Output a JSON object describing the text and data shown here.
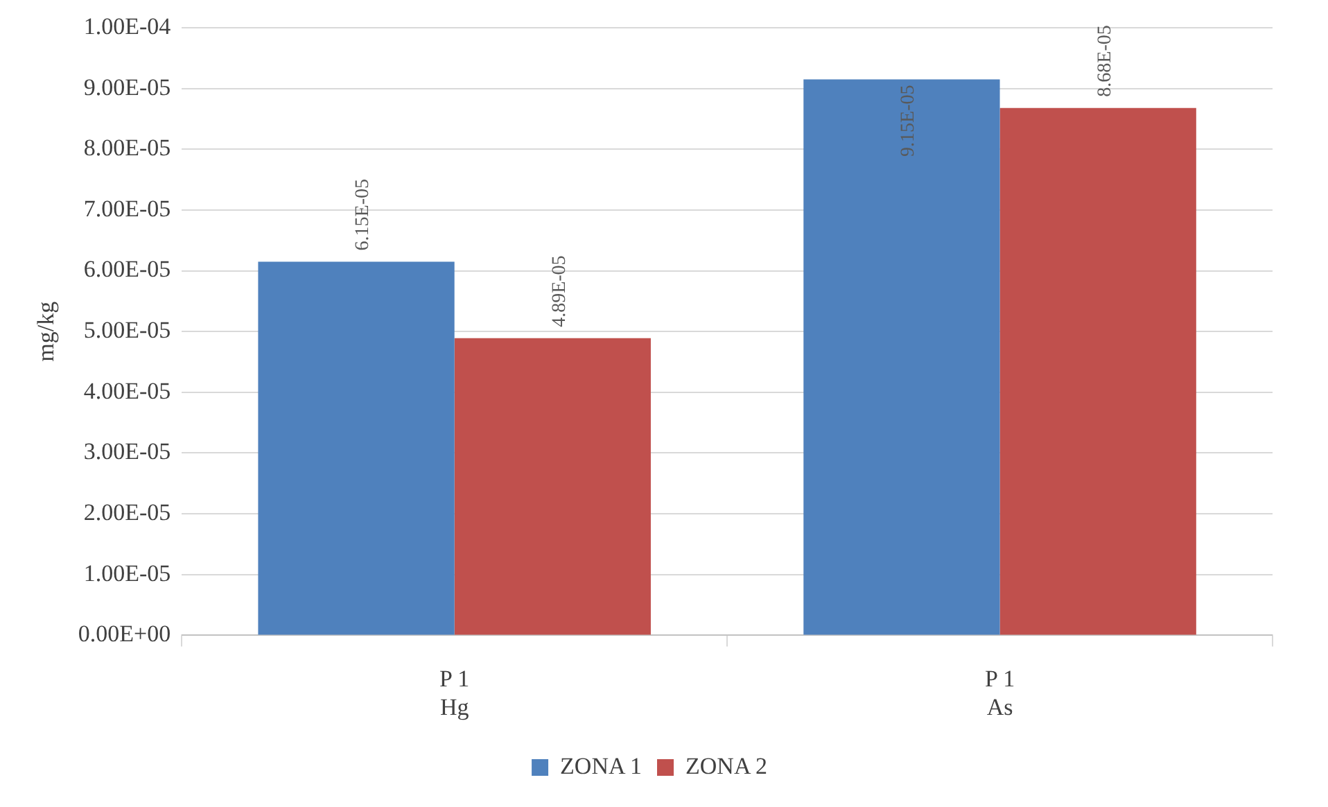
{
  "chart_data": {
    "type": "bar",
    "ylabel": "mg/kg",
    "categories": [
      "P 1\nHg",
      "P 1\nAs"
    ],
    "series": [
      {
        "name": "ZONA 1",
        "color": "#4f81bd",
        "values": [
          6.15e-05,
          9.15e-05
        ],
        "value_labels": [
          "6.15E-05",
          "9.15E-05"
        ]
      },
      {
        "name": "ZONA 2",
        "color": "#c0504d",
        "values": [
          4.89e-05,
          8.68e-05
        ],
        "value_labels": [
          "4.89E-05",
          "8.68E-05"
        ]
      }
    ],
    "ylim": [
      0,
      0.0001
    ],
    "yticks": [
      {
        "value": 0,
        "label": "0.00E+00"
      },
      {
        "value": 1e-05,
        "label": "1.00E-05"
      },
      {
        "value": 2e-05,
        "label": "2.00E-05"
      },
      {
        "value": 3e-05,
        "label": "3.00E-05"
      },
      {
        "value": 4e-05,
        "label": "4.00E-05"
      },
      {
        "value": 5e-05,
        "label": "5.00E-05"
      },
      {
        "value": 6e-05,
        "label": "6.00E-05"
      },
      {
        "value": 7e-05,
        "label": "7.00E-05"
      },
      {
        "value": 8e-05,
        "label": "8.00E-05"
      },
      {
        "value": 9e-05,
        "label": "9.00E-05"
      },
      {
        "value": 0.0001,
        "label": "1.00E-04"
      }
    ],
    "grid": "y",
    "legend": "bottom"
  }
}
